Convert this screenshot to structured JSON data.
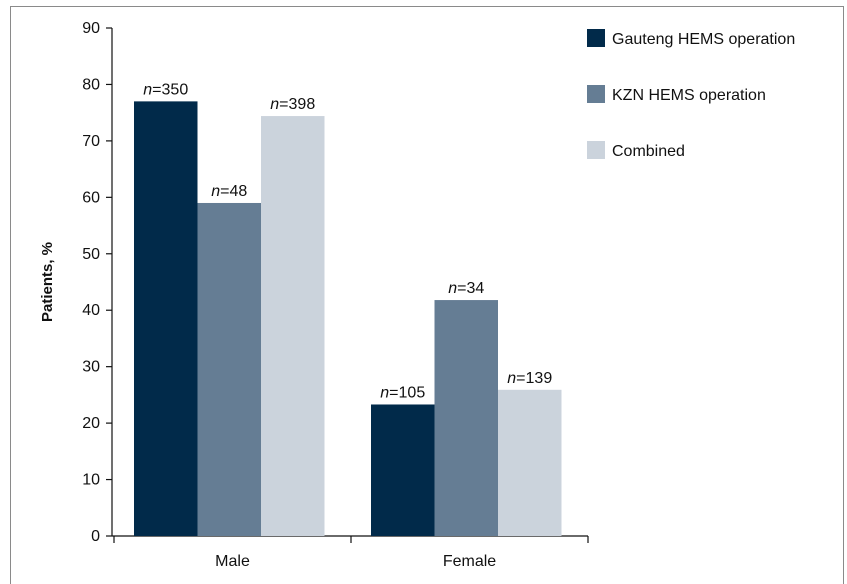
{
  "chart_data": {
    "type": "bar",
    "ylabel": "Patients, %",
    "xlabel": "",
    "ylim": [
      0,
      90
    ],
    "yticks": [
      0,
      10,
      20,
      30,
      40,
      50,
      60,
      70,
      80,
      90
    ],
    "categories": [
      "Male",
      "Female"
    ],
    "series": [
      {
        "name": "Gauteng HEMS operation",
        "color": "#012a4a",
        "values": [
          77,
          23.3
        ],
        "labels": [
          "n=350",
          "n=105"
        ]
      },
      {
        "name": "KZN HEMS operation",
        "color": "#657d94",
        "values": [
          59,
          41.8
        ],
        "labels": [
          "n=48",
          "n=34"
        ]
      },
      {
        "name": "Combined",
        "color": "#cbd3dc",
        "values": [
          74.4,
          25.9
        ],
        "labels": [
          "n=398",
          "n=139"
        ]
      }
    ],
    "legend_position": "top-right",
    "grid": false
  }
}
